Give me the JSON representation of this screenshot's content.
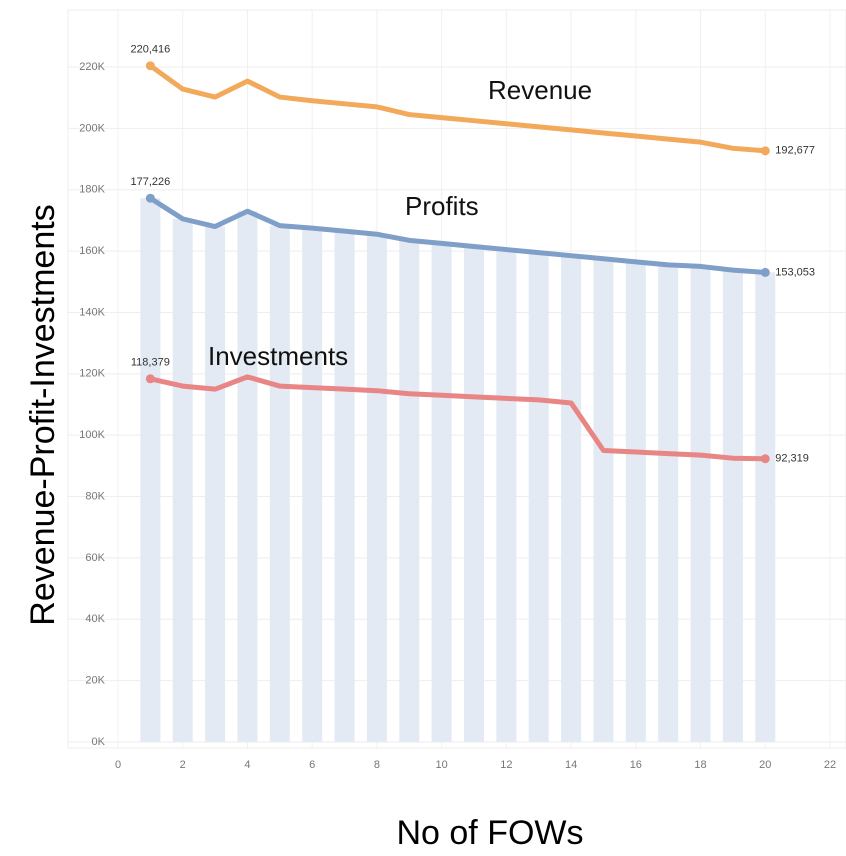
{
  "chart_data": {
    "type": "line",
    "x_label": "No of FOWs",
    "y_label": "Revenue-Profit-Investments",
    "x": [
      1,
      2,
      3,
      4,
      5,
      6,
      7,
      8,
      9,
      10,
      11,
      12,
      13,
      14,
      15,
      16,
      17,
      18,
      19,
      20
    ],
    "bars": {
      "color": "#e3eaf3",
      "series": 1
    },
    "series": [
      {
        "name": "Revenue",
        "color": "#f2a95a",
        "values": [
          220416,
          212800,
          210200,
          215400,
          210200,
          209000,
          208000,
          207000,
          204500,
          203500,
          202500,
          201500,
          200500,
          199500,
          198500,
          197500,
          196500,
          195500,
          193500,
          192677
        ],
        "value_labels": [
          "220,416",
          null,
          null,
          null,
          null,
          null,
          null,
          null,
          null,
          null,
          null,
          null,
          null,
          null,
          null,
          null,
          null,
          null,
          null,
          "192,677"
        ]
      },
      {
        "name": "Profits",
        "color": "#7f9fc8",
        "values": [
          177226,
          170500,
          168000,
          173000,
          168300,
          167500,
          166500,
          165500,
          163500,
          162500,
          161500,
          160500,
          159500,
          158500,
          157500,
          156500,
          155500,
          155000,
          153800,
          153053
        ],
        "value_labels": [
          "177,226",
          null,
          null,
          null,
          null,
          null,
          null,
          null,
          null,
          null,
          null,
          null,
          null,
          null,
          null,
          null,
          null,
          null,
          null,
          "153,053"
        ]
      },
      {
        "name": "Investments",
        "color": "#e88585",
        "values": [
          118379,
          116000,
          115000,
          119000,
          116000,
          115500,
          115000,
          114500,
          113500,
          113000,
          112500,
          112000,
          111500,
          110500,
          95000,
          94500,
          94000,
          93500,
          92500,
          92319
        ],
        "value_labels": [
          "118,379",
          null,
          null,
          null,
          null,
          null,
          null,
          null,
          null,
          null,
          null,
          null,
          null,
          null,
          null,
          null,
          null,
          null,
          null,
          "92,319"
        ]
      }
    ],
    "xlim": [
      0,
      22
    ],
    "xticks": [
      0,
      2,
      4,
      6,
      8,
      10,
      12,
      14,
      16,
      18,
      20,
      22
    ],
    "ylim": [
      0,
      220000
    ],
    "yticks": [
      {
        "value": 0,
        "label": "0K"
      },
      {
        "value": 20000,
        "label": "20K"
      },
      {
        "value": 40000,
        "label": "40K"
      },
      {
        "value": 60000,
        "label": "60K"
      },
      {
        "value": 80000,
        "label": "80K"
      },
      {
        "value": 100000,
        "label": "100K"
      },
      {
        "value": 120000,
        "label": "120K"
      },
      {
        "value": 140000,
        "label": "140K"
      },
      {
        "value": 160000,
        "label": "160K"
      },
      {
        "value": 180000,
        "label": "180K"
      },
      {
        "value": 200000,
        "label": "200K"
      },
      {
        "value": 220000,
        "label": "220K"
      }
    ],
    "grid": true
  }
}
